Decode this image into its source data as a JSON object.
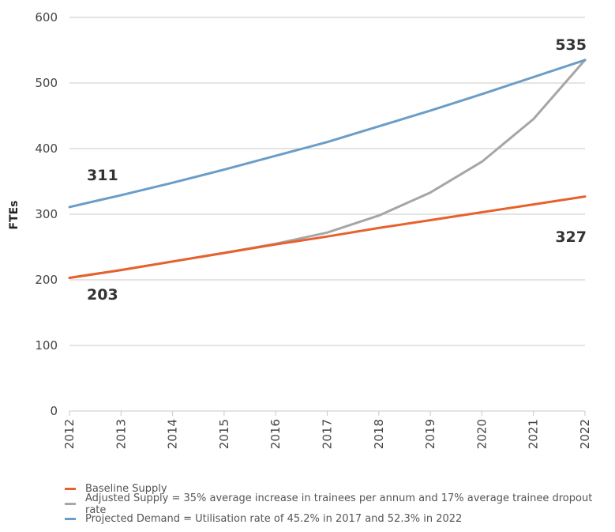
{
  "chart_data": {
    "type": "line",
    "ylabel": "FTEs",
    "ylim": [
      0,
      600
    ],
    "yticks": [
      0,
      100,
      200,
      300,
      400,
      500,
      600
    ],
    "categories": [
      "2012",
      "2013",
      "2014",
      "2015",
      "2016",
      "2017",
      "2018",
      "2019",
      "2020",
      "2021",
      "2022"
    ],
    "series": [
      {
        "name": "Baseline Supply",
        "color": "#E8612C",
        "values": [
          203,
          215,
          228,
          241,
          254,
          266,
          279,
          291,
          303,
          315,
          327
        ]
      },
      {
        "name": "Adjusted Supply = 35% average increase in trainees per annum and 17% average trainee dropout rate",
        "color": "#A6A6A6",
        "values": [
          203,
          215,
          228,
          241,
          255,
          272,
          298,
          333,
          380,
          445,
          535
        ]
      },
      {
        "name": "Projected Demand = Utilisation rate of 45.2% in 2017 and 52.3% in 2022",
        "color": "#6A9DC8",
        "values": [
          311,
          329,
          348,
          368,
          389,
          410,
          434,
          458,
          483,
          509,
          535
        ]
      }
    ],
    "annotations": [
      "535",
      "311",
      "327",
      "203"
    ],
    "grid": true,
    "legend_position": "bottom-left"
  }
}
